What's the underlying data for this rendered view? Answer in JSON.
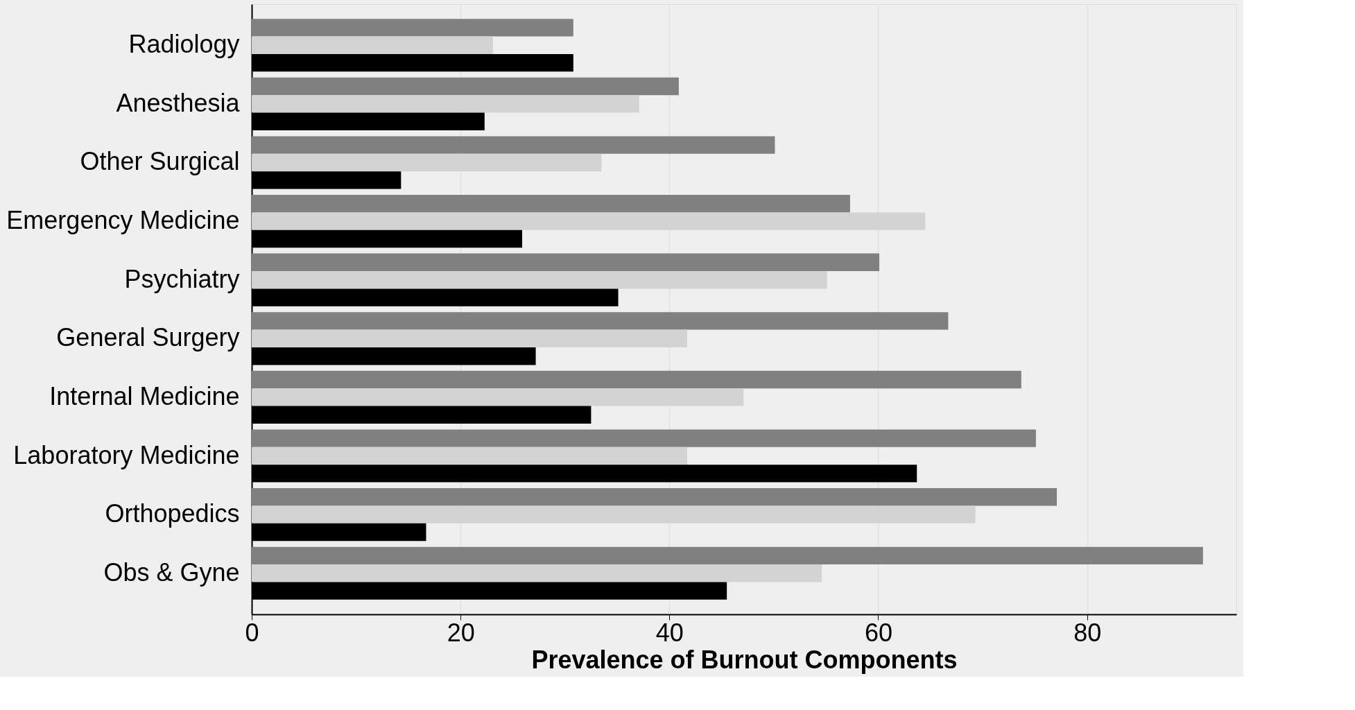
{
  "chart_data": {
    "type": "bar",
    "orientation": "horizontal",
    "xlabel": "Prevalence of Burnout Components",
    "categories": [
      "Radiology",
      "Anesthesia",
      "Other Surgical",
      "Emergency Medicine",
      "Psychiatry",
      "General Surgery",
      "Internal Medicine",
      "Laboratory Medicine",
      "Orthopedics",
      "Obs & Gyne"
    ],
    "series": [
      {
        "color": "#808080",
        "values": [
          30.8,
          40.9,
          50.1,
          57.3,
          60.1,
          66.7,
          73.7,
          75.1,
          77.1,
          91.1
        ]
      },
      {
        "color": "#d3d3d3",
        "values": [
          23.1,
          37.1,
          33.5,
          64.5,
          55.1,
          41.7,
          47.1,
          41.7,
          69.3,
          54.6
        ]
      },
      {
        "color": "#000000",
        "values": [
          30.8,
          22.3,
          14.3,
          25.9,
          35.1,
          27.2,
          32.5,
          63.7,
          16.7,
          45.5
        ]
      }
    ],
    "xlim": [
      0,
      94.3
    ],
    "xticks": [
      0,
      20,
      40,
      60,
      80
    ],
    "grid": "x",
    "legend": false
  }
}
